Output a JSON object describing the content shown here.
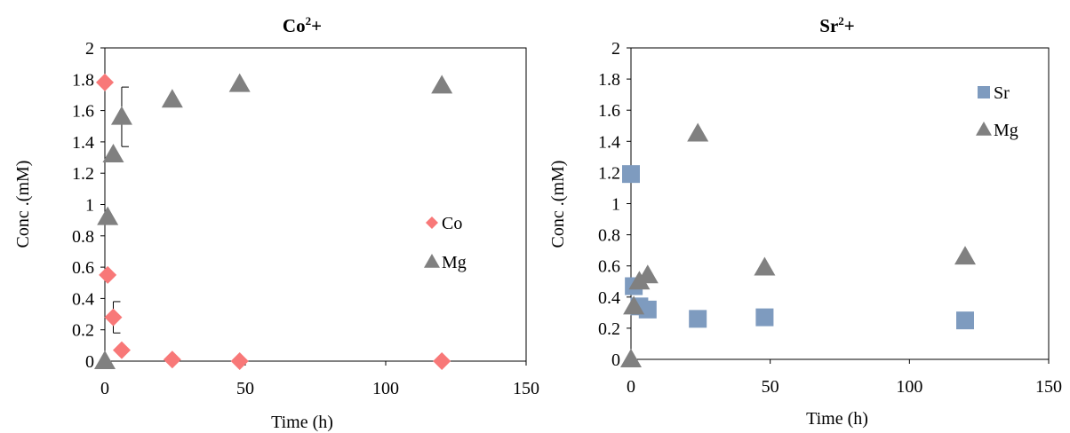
{
  "chart_data": [
    {
      "type": "scatter",
      "title": "Co",
      "title_sup": "2",
      "title_suffix": "+",
      "xlabel": "Time (h)",
      "ylabel": "Conc .(mM)",
      "xlim": [
        0,
        150
      ],
      "ylim": [
        0,
        2
      ],
      "x_ticks": [
        0,
        50,
        100,
        150
      ],
      "y_ticks": [
        0,
        0.2,
        0.4,
        0.6,
        0.8,
        1,
        1.2,
        1.4,
        1.6,
        1.8,
        2
      ],
      "grid": false,
      "legend_position": "middle-right",
      "series": [
        {
          "name": "Co",
          "marker": "diamond",
          "color": "#F87878",
          "points": [
            {
              "x": 0,
              "y": 1.78
            },
            {
              "x": 1,
              "y": 0.55
            },
            {
              "x": 3,
              "y": 0.28,
              "err": 0.1
            },
            {
              "x": 6,
              "y": 0.07
            },
            {
              "x": 24,
              "y": 0.01
            },
            {
              "x": 48,
              "y": 0.0
            },
            {
              "x": 120,
              "y": 0.0
            }
          ]
        },
        {
          "name": "Mg",
          "marker": "triangle",
          "color": "#808080",
          "points": [
            {
              "x": 0,
              "y": 0.0
            },
            {
              "x": 1,
              "y": 0.92
            },
            {
              "x": 3,
              "y": 1.32
            },
            {
              "x": 6,
              "y": 1.56,
              "err": 0.19
            },
            {
              "x": 24,
              "y": 1.67
            },
            {
              "x": 48,
              "y": 1.77
            },
            {
              "x": 120,
              "y": 1.76
            }
          ]
        }
      ]
    },
    {
      "type": "scatter",
      "title": "Sr",
      "title_sup": "2",
      "title_suffix": "+",
      "xlabel": "Time (h)",
      "ylabel": "Conc .(mM)",
      "xlim": [
        0,
        150
      ],
      "ylim": [
        0,
        2
      ],
      "x_ticks": [
        0,
        50,
        100,
        150
      ],
      "y_ticks": [
        0,
        0.2,
        0.4,
        0.6,
        0.8,
        1,
        1.2,
        1.4,
        1.6,
        1.8,
        2
      ],
      "grid": false,
      "legend_position": "top-right",
      "series": [
        {
          "name": "Sr",
          "marker": "square",
          "color": "#7E9BBF",
          "points": [
            {
              "x": 0,
              "y": 1.19
            },
            {
              "x": 1,
              "y": 0.47
            },
            {
              "x": 3,
              "y": 0.34
            },
            {
              "x": 6,
              "y": 0.32
            },
            {
              "x": 24,
              "y": 0.26
            },
            {
              "x": 48,
              "y": 0.27
            },
            {
              "x": 120,
              "y": 0.25
            }
          ]
        },
        {
          "name": "Mg",
          "marker": "triangle",
          "color": "#808080",
          "points": [
            {
              "x": 0,
              "y": 0.0
            },
            {
              "x": 1,
              "y": 0.34
            },
            {
              "x": 3,
              "y": 0.5
            },
            {
              "x": 6,
              "y": 0.54
            },
            {
              "x": 24,
              "y": 1.45
            },
            {
              "x": 48,
              "y": 0.59
            },
            {
              "x": 120,
              "y": 0.66
            }
          ]
        }
      ]
    }
  ]
}
